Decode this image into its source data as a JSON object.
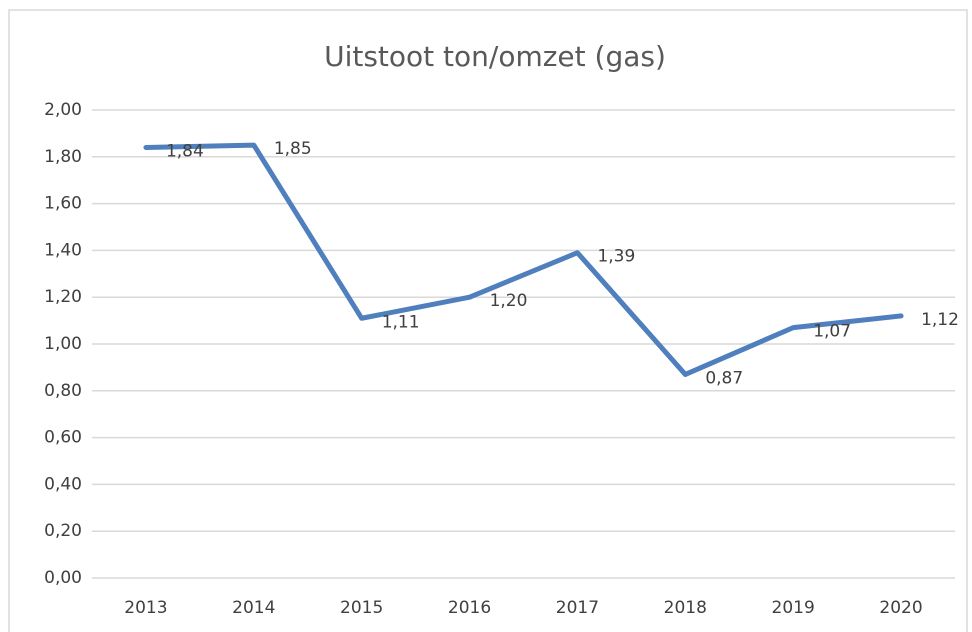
{
  "chart_data": {
    "type": "line",
    "title": "Uitstoot ton/omzet (gas)",
    "categories": [
      "2013",
      "2014",
      "2015",
      "2016",
      "2017",
      "2018",
      "2019",
      "2020"
    ],
    "values": [
      1.84,
      1.85,
      1.11,
      1.2,
      1.39,
      0.87,
      1.07,
      1.12
    ],
    "value_labels": [
      "1,84",
      "1,85",
      "1,11",
      "1,20",
      "1,39",
      "0,87",
      "1,07",
      "1,12"
    ],
    "color": "#4f7fbd",
    "ylim": [
      0,
      2
    ],
    "yticks": [
      {
        "value": 0,
        "label": "0,00"
      },
      {
        "value": 0.2,
        "label": "0,20"
      },
      {
        "value": 0.4,
        "label": "0,40"
      },
      {
        "value": 0.6,
        "label": "0,60"
      },
      {
        "value": 0.8,
        "label": "0,80"
      },
      {
        "value": 1,
        "label": "1,00"
      },
      {
        "value": 1.2,
        "label": "1,20"
      },
      {
        "value": 1.4,
        "label": "1,40"
      },
      {
        "value": 1.6,
        "label": "1,60"
      },
      {
        "value": 1.8,
        "label": "1,80"
      },
      {
        "value": 2,
        "label": "2,00"
      }
    ],
    "grid": true
  }
}
